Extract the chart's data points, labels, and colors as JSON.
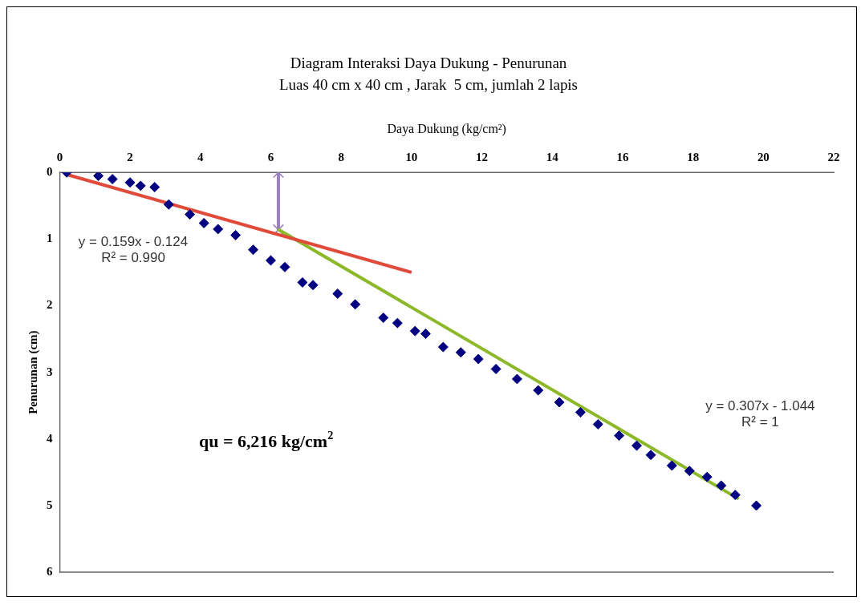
{
  "chart_data": {
    "type": "scatter",
    "title": "Diagram Interaksi Daya Dukung - Penurunan",
    "subtitle": "Luas 40 cm x 40 cm , Jarak  5 cm, jumlah 2 lapis",
    "xlabel": "Daya Dukung (kg/cm²)",
    "ylabel": "Penurunan (cm)",
    "xlim": [
      0,
      22
    ],
    "xticks": [
      0,
      2,
      4,
      6,
      8,
      10,
      12,
      14,
      16,
      18,
      20,
      22
    ],
    "ylim": [
      6,
      0
    ],
    "yticks": [
      0,
      1,
      2,
      3,
      4,
      5,
      6
    ],
    "grid": false,
    "legend": false,
    "series": [
      {
        "marker": "diamond",
        "color": "#000080",
        "x": [
          0.2,
          1.1,
          1.5,
          2.0,
          2.3,
          2.7,
          3.1,
          3.7,
          4.1,
          4.5,
          5.0,
          5.5,
          6.0,
          6.4,
          6.9,
          7.2,
          7.9,
          8.4,
          9.2,
          9.6,
          10.1,
          10.4,
          10.9,
          11.4,
          11.9,
          12.4,
          13.0,
          13.6,
          14.2,
          14.8,
          15.3,
          15.9,
          16.4,
          16.8,
          17.4,
          17.9,
          18.4,
          18.8,
          19.2,
          19.8
        ],
        "values": [
          0,
          0.05,
          0.1,
          0.15,
          0.2,
          0.22,
          0.48,
          0.63,
          0.76,
          0.85,
          0.94,
          1.16,
          1.32,
          1.42,
          1.65,
          1.69,
          1.82,
          1.98,
          2.18,
          2.26,
          2.38,
          2.42,
          2.62,
          2.7,
          2.8,
          2.95,
          3.1,
          3.27,
          3.45,
          3.6,
          3.78,
          3.95,
          4.1,
          4.24,
          4.4,
          4.48,
          4.57,
          4.7,
          4.84,
          5.0
        ]
      },
      {
        "type": "line",
        "marker": "none",
        "color": "#e04a3a",
        "x": [
          0.2,
          10.0
        ],
        "values": [
          0.03,
          1.5
        ]
      },
      {
        "type": "line",
        "marker": "none",
        "color": "#8cb82a",
        "x": [
          6.2,
          19.3
        ],
        "values": [
          0.85,
          4.9
        ]
      },
      {
        "type": "line",
        "marker": "cross",
        "color": "#9b7fc0",
        "x": [
          6.216,
          6.216
        ],
        "values": [
          0,
          0.86
        ]
      }
    ],
    "annotations": [
      "y = 0.159x - 0.124",
      "R² = 0.990",
      "y = 0.307x - 1.044",
      "R² = 1",
      "qu = 6,216 kg/cm$^{2}$"
    ]
  }
}
